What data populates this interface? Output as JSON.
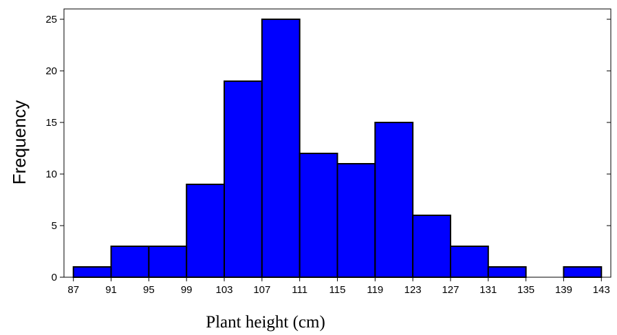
{
  "chart_data": {
    "type": "bar",
    "xlabel": "Plant height (cm)",
    "ylabel": "Frequency",
    "bin_edges": [
      87,
      91,
      95,
      99,
      103,
      107,
      111,
      115,
      119,
      123,
      127,
      131,
      135,
      139,
      143
    ],
    "values": [
      1,
      3,
      3,
      9,
      19,
      25,
      12,
      11,
      15,
      6,
      3,
      1,
      0,
      1
    ],
    "x_ticks": [
      "87",
      "91",
      "95",
      "99",
      "103",
      "107",
      "111",
      "115",
      "119",
      "123",
      "127",
      "131",
      "135",
      "139",
      "143"
    ],
    "y_ticks": [
      "0",
      "5",
      "10",
      "15",
      "20",
      "25"
    ],
    "ylim": [
      0,
      26
    ],
    "xlim": [
      86,
      144
    ],
    "grid": false,
    "colors": {
      "bar_fill": "#0000ff",
      "bar_stroke": "#000000"
    }
  }
}
